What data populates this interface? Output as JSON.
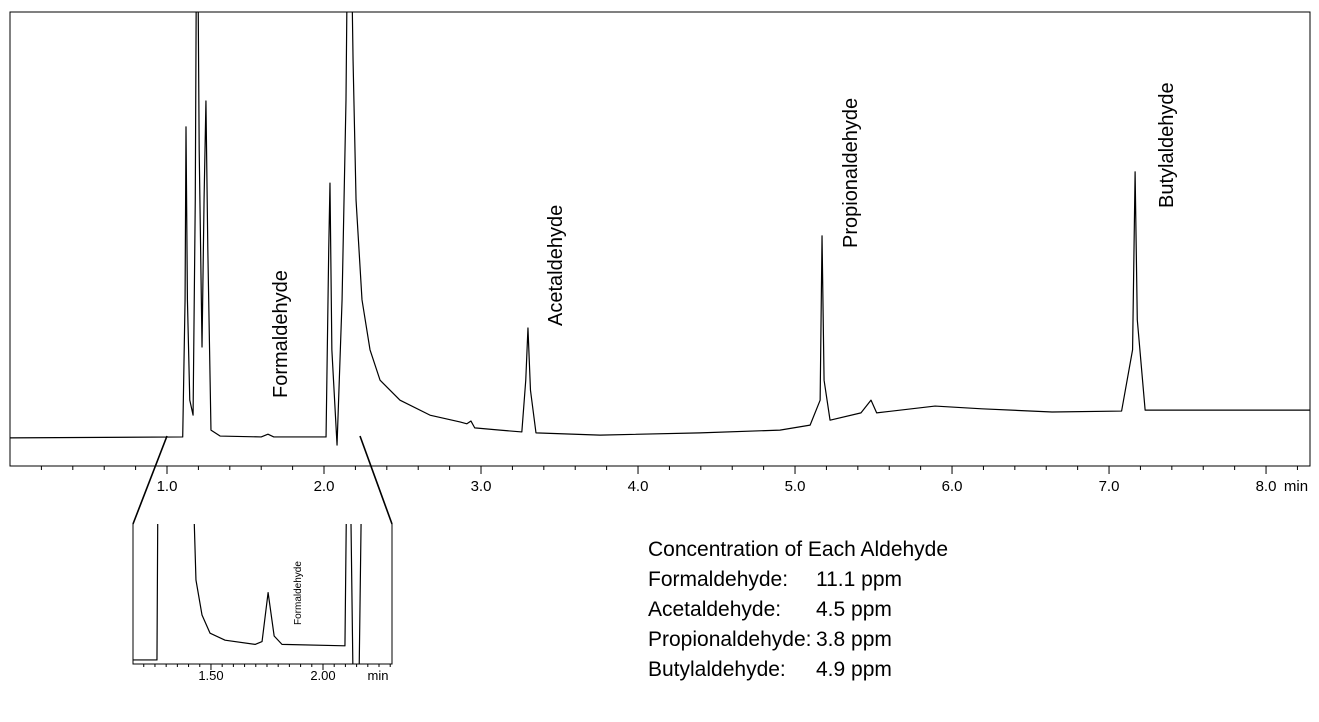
{
  "chart_data": [
    {
      "type": "line",
      "x": [
        0.0,
        1.1,
        1.115,
        1.121,
        1.13,
        1.145,
        1.166,
        1.18,
        1.191,
        1.205,
        1.223,
        1.236,
        1.248,
        1.26,
        1.28,
        1.338,
        1.6,
        1.643,
        1.68,
        2.013,
        2.03,
        2.038,
        2.05,
        2.083,
        2.115,
        2.14,
        2.159,
        2.185,
        2.204,
        2.242,
        2.293,
        2.357,
        2.484,
        2.675,
        2.866,
        2.91,
        2.936,
        2.96,
        3.121,
        3.26,
        3.285,
        3.299,
        3.315,
        3.35,
        3.758,
        4.395,
        4.904,
        5.096,
        5.16,
        5.172,
        5.185,
        5.223,
        5.42,
        5.484,
        5.52,
        5.892,
        6.19,
        6.637,
        7.08,
        7.15,
        7.166,
        7.18,
        7.23,
        8.28
      ],
      "values": [
        6.2,
        6.4,
        36.6,
        74.7,
        36.6,
        14.5,
        11.2,
        58.6,
        140,
        69.6,
        26.2,
        58.6,
        80.4,
        47.6,
        7.9,
        6.6,
        6.4,
        7.0,
        6.4,
        6.4,
        47.6,
        62.3,
        25.6,
        4.6,
        36.6,
        80.6,
        150,
        89.4,
        58.6,
        36.6,
        25.6,
        18.9,
        14.5,
        11.2,
        9.7,
        9.3,
        9.9,
        8.4,
        7.9,
        7.5,
        18.9,
        30.4,
        16.7,
        7.3,
        6.8,
        7.3,
        7.9,
        9.0,
        14.5,
        50.7,
        18.9,
        10.1,
        11.7,
        14.5,
        11.7,
        13.2,
        12.6,
        11.9,
        12.1,
        25.6,
        64.8,
        32.2,
        12.3,
        12.3
      ],
      "color": "#000000",
      "xlim": [
        0,
        8.28
      ],
      "ylim": [
        0,
        100
      ],
      "xticks": [
        {
          "value": 1,
          "label": "1.0"
        },
        {
          "value": 2,
          "label": "2.0"
        },
        {
          "value": 3,
          "label": "3.0"
        },
        {
          "value": 4,
          "label": "4.0"
        },
        {
          "value": 5,
          "label": "5.0"
        },
        {
          "value": 6,
          "label": "6.0"
        },
        {
          "value": 7,
          "label": "7.0"
        },
        {
          "value": 8,
          "label": "8.0"
        }
      ],
      "xminorticks": [
        0.2,
        0.4,
        0.6,
        0.8,
        1.2,
        1.4,
        1.6,
        1.8,
        2.2,
        2.4,
        2.6,
        2.8,
        3.2,
        3.4,
        3.6,
        3.8,
        4.2,
        4.4,
        4.6,
        4.8,
        5.2,
        5.4,
        5.6,
        5.8,
        6.2,
        6.4,
        6.6,
        6.8,
        7.2,
        7.4,
        7.6,
        7.8,
        8.2
      ],
      "xlabel": "min",
      "annotations": [
        "Formaldehyde",
        "Acetaldehyde",
        "Propionaldehyde",
        "Butylaldehyde"
      ]
    },
    {
      "type": "line",
      "x": [
        1.152,
        1.259,
        1.264,
        1.42,
        1.433,
        1.46,
        1.496,
        1.563,
        1.697,
        1.728,
        1.755,
        1.782,
        1.817,
        2.098,
        2.107,
        2.121,
        2.134,
        2.161,
        2.174
      ],
      "values": [
        2.9,
        2.9,
        150,
        130,
        60,
        35,
        22,
        17,
        14,
        16,
        51,
        20,
        14,
        13,
        150,
        150,
        -10,
        -10,
        150
      ],
      "color": "#000000",
      "xlim": [
        1.152,
        2.308
      ],
      "ylim": [
        0,
        100
      ],
      "xticks": [
        {
          "value": 1.5,
          "label": "1.50"
        },
        {
          "value": 2,
          "label": "2.00"
        }
      ],
      "xminorticks": [
        1.2,
        1.25,
        1.3,
        1.35,
        1.4,
        1.45,
        1.55,
        1.6,
        1.65,
        1.7,
        1.75,
        1.8,
        1.85,
        1.9,
        1.95,
        2.05,
        2.1,
        2.15,
        2.2,
        2.25,
        2.3
      ],
      "xlabel": "min",
      "annotations": [
        "Formaldehyde"
      ]
    }
  ],
  "concentration_table": {
    "title": "Concentration of Each Aldehyde",
    "rows": [
      [
        "Formaldehyde:",
        "11.1 ppm"
      ],
      [
        "Acetaldehyde:",
        "4.5 ppm"
      ],
      [
        "Propionaldehyde:",
        "3.8 ppm"
      ],
      [
        "Butylaldehyde:",
        "4.9 ppm"
      ]
    ]
  }
}
